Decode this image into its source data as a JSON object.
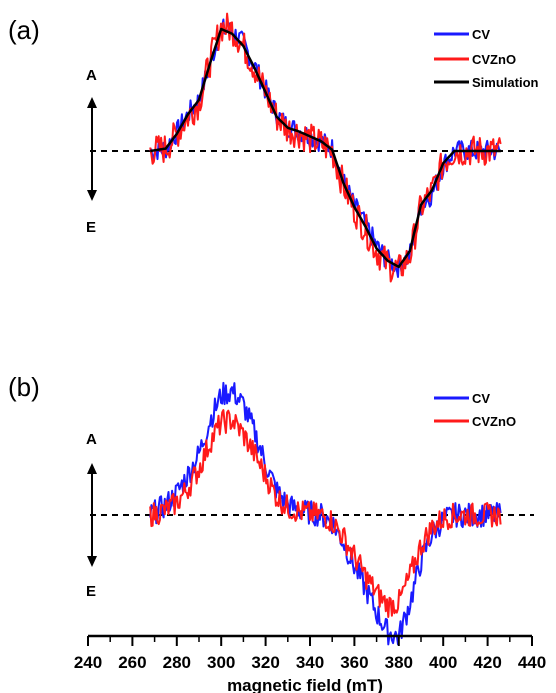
{
  "chart_data": [
    {
      "panel_label": "(a)",
      "type": "line",
      "y_top_label": "A",
      "y_bottom_label": "E",
      "baseline": 0,
      "xlim": [
        240,
        440
      ],
      "ylim": [
        -1.1,
        1.1
      ],
      "series": [
        {
          "name": "CV",
          "color": "#1a1aff",
          "noise": 0.09,
          "x": [
            268,
            275,
            280,
            285,
            290,
            295,
            300,
            305,
            310,
            315,
            320,
            325,
            330,
            335,
            340,
            345,
            350,
            355,
            360,
            365,
            370,
            375,
            380,
            385,
            390,
            395,
            400,
            405,
            410,
            415,
            420,
            426
          ],
          "y": [
            0.0,
            0.02,
            0.15,
            0.3,
            0.42,
            0.72,
            1.0,
            0.98,
            0.88,
            0.7,
            0.5,
            0.3,
            0.2,
            0.17,
            0.12,
            0.08,
            0.02,
            -0.25,
            -0.45,
            -0.6,
            -0.78,
            -0.9,
            -0.95,
            -0.85,
            -0.45,
            -0.35,
            -0.12,
            0.0,
            0.0,
            0.0,
            0.0,
            0.0
          ]
        },
        {
          "name": "CVZnO",
          "color": "#ff1a1a",
          "noise": 0.13,
          "x": [
            268,
            275,
            280,
            285,
            290,
            295,
            300,
            305,
            310,
            315,
            320,
            325,
            330,
            335,
            340,
            345,
            350,
            355,
            360,
            365,
            370,
            375,
            380,
            385,
            390,
            395,
            400,
            405,
            410,
            415,
            420,
            426
          ],
          "y": [
            0.0,
            0.02,
            0.14,
            0.28,
            0.4,
            0.74,
            1.02,
            1.0,
            0.86,
            0.68,
            0.48,
            0.28,
            0.18,
            0.15,
            0.1,
            0.06,
            0.0,
            -0.28,
            -0.48,
            -0.64,
            -0.82,
            -0.93,
            -0.98,
            -0.86,
            -0.46,
            -0.33,
            -0.1,
            0.0,
            0.0,
            0.0,
            0.0,
            0.0
          ]
        },
        {
          "name": "Simulation",
          "color": "#000000",
          "noise": 0,
          "x": [
            268,
            275,
            280,
            285,
            290,
            295,
            300,
            305,
            310,
            315,
            320,
            325,
            330,
            335,
            340,
            345,
            350,
            355,
            360,
            365,
            370,
            375,
            380,
            385,
            390,
            395,
            400,
            405,
            410,
            415,
            420,
            426
          ],
          "y": [
            0.0,
            0.02,
            0.14,
            0.3,
            0.42,
            0.72,
            1.0,
            0.96,
            0.86,
            0.68,
            0.48,
            0.28,
            0.19,
            0.16,
            0.12,
            0.08,
            0.01,
            -0.26,
            -0.46,
            -0.62,
            -0.8,
            -0.9,
            -0.95,
            -0.82,
            -0.44,
            -0.32,
            -0.1,
            0.0,
            0.0,
            0.0,
            0.0,
            0.0
          ]
        }
      ]
    },
    {
      "panel_label": "(b)",
      "type": "line",
      "y_top_label": "A",
      "y_bottom_label": "E",
      "baseline": 0,
      "xlim": [
        240,
        440
      ],
      "ylim": [
        -1.1,
        1.1
      ],
      "xlabel": "magnetic field (mT)",
      "xticks": [
        240,
        260,
        280,
        300,
        320,
        340,
        360,
        380,
        400,
        420,
        440
      ],
      "series": [
        {
          "name": "CV",
          "color": "#1a1aff",
          "noise": 0.1,
          "x": [
            268,
            275,
            280,
            285,
            290,
            295,
            300,
            305,
            310,
            315,
            320,
            325,
            330,
            335,
            340,
            345,
            350,
            355,
            360,
            365,
            370,
            375,
            380,
            385,
            390,
            395,
            400,
            405,
            410,
            415,
            420,
            426
          ],
          "y": [
            0.0,
            0.08,
            0.18,
            0.33,
            0.5,
            0.78,
            0.98,
            1.02,
            0.9,
            0.68,
            0.42,
            0.2,
            0.08,
            0.04,
            0.02,
            0.0,
            -0.06,
            -0.22,
            -0.42,
            -0.6,
            -0.8,
            -0.96,
            -1.0,
            -0.72,
            -0.38,
            -0.15,
            -0.04,
            0.0,
            0.0,
            0.0,
            0.0,
            0.0
          ]
        },
        {
          "name": "CVZnO",
          "color": "#ff1a1a",
          "noise": 0.1,
          "x": [
            268,
            275,
            280,
            285,
            290,
            295,
            300,
            305,
            310,
            315,
            320,
            325,
            330,
            335,
            340,
            345,
            350,
            355,
            360,
            365,
            370,
            375,
            380,
            385,
            390,
            395,
            400,
            405,
            410,
            415,
            420,
            426
          ],
          "y": [
            0.0,
            0.04,
            0.1,
            0.22,
            0.38,
            0.6,
            0.76,
            0.78,
            0.66,
            0.5,
            0.32,
            0.15,
            0.06,
            0.03,
            0.01,
            0.0,
            -0.05,
            -0.18,
            -0.34,
            -0.5,
            -0.64,
            -0.74,
            -0.72,
            -0.5,
            -0.25,
            -0.1,
            -0.03,
            0.0,
            0.0,
            0.0,
            0.0,
            0.0
          ]
        }
      ]
    }
  ]
}
